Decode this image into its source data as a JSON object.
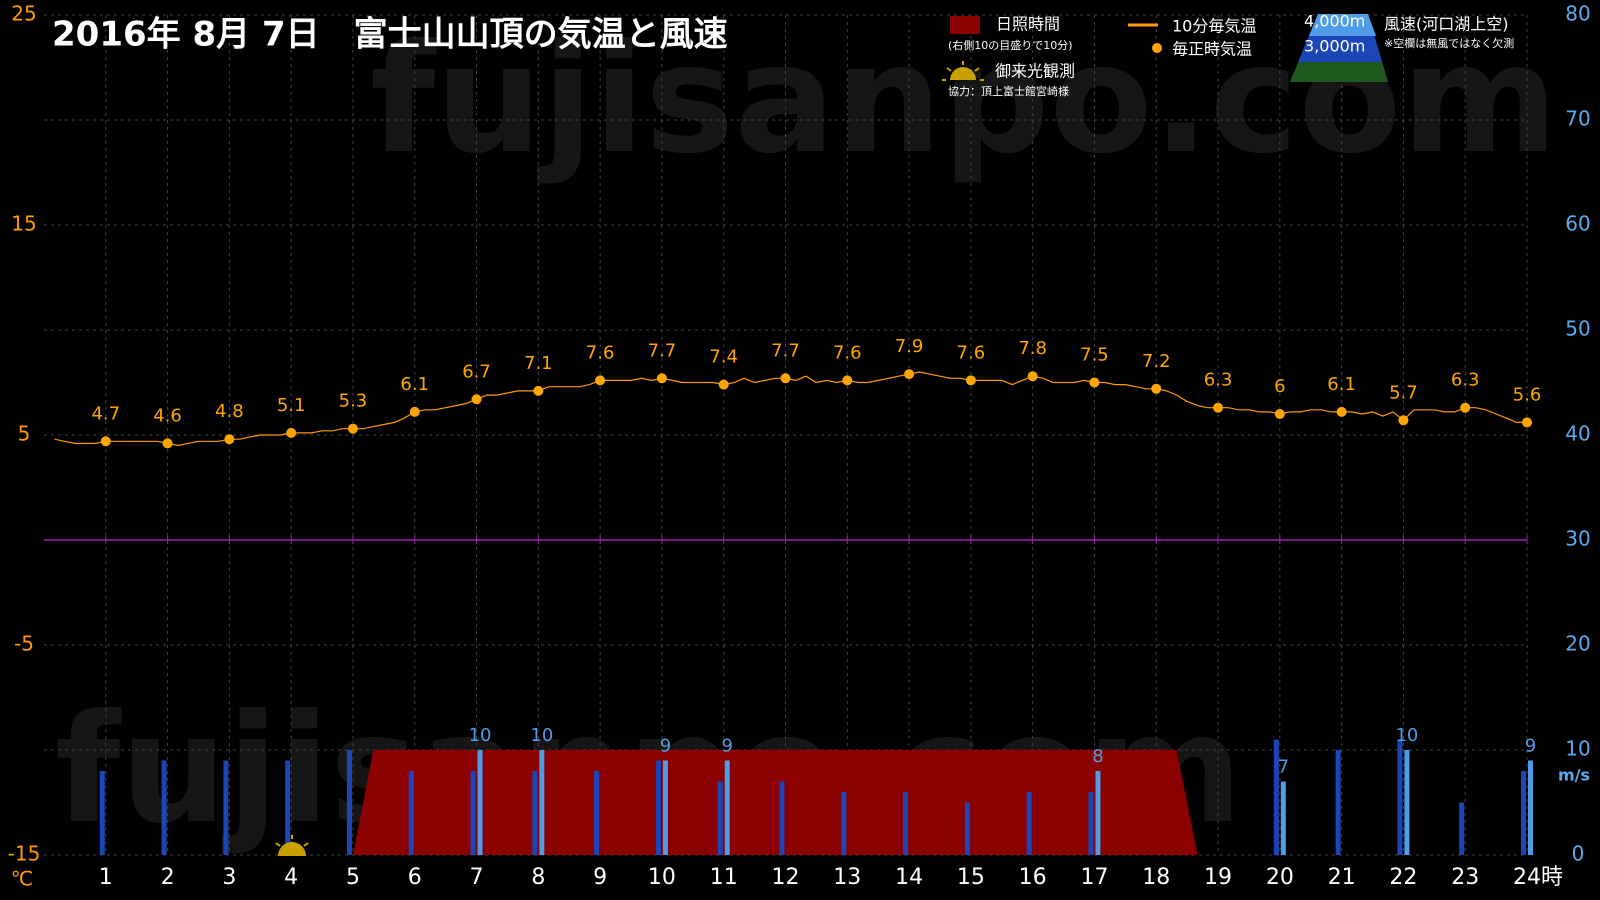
{
  "chart_data": {
    "type": "combo",
    "title": "2016年  8月  7日　富士山山頂の気温と風速",
    "watermark": "fujisanpo.com",
    "xlim": [
      0,
      24
    ],
    "xticks": [
      1,
      2,
      3,
      4,
      5,
      6,
      7,
      8,
      9,
      10,
      11,
      12,
      13,
      14,
      15,
      16,
      17,
      18,
      19,
      20,
      21,
      22,
      23,
      24
    ],
    "x_unit": "時",
    "ylim": [
      -15,
      25
    ],
    "yticks": [
      -15,
      -5,
      5,
      15,
      25
    ],
    "yminor": [
      -10,
      0,
      10,
      20
    ],
    "y_unit": "℃",
    "y2lim": [
      0,
      80
    ],
    "y2ticks": [
      0,
      10,
      20,
      30,
      40,
      50,
      60,
      70,
      80
    ],
    "y2_unit": "m/s",
    "grid": true,
    "reference_line": {
      "value": 0,
      "color": "#a020b0"
    },
    "legend_notes": {
      "sunshine": "(右側10の目盛りで10分)",
      "wind": "風速(河口湖上空)",
      "missing": "※空欄は無風ではなく欠測",
      "sunrise": "御来光観測",
      "credit": "協力：頂上富士館宮崎様"
    },
    "series": [
      {
        "name": "日照時間",
        "type": "area",
        "axis": "y2",
        "color": "#8b0000",
        "x": [
          5,
          5.33,
          18.33,
          18.67
        ],
        "values": [
          0,
          10,
          10,
          0
        ]
      },
      {
        "name": "10分毎気温",
        "type": "line",
        "color": "#ff9900",
        "x": [
          0.17,
          0.33,
          0.5,
          0.67,
          0.83,
          1,
          1.17,
          1.33,
          1.5,
          1.67,
          1.83,
          2,
          2.17,
          2.33,
          2.5,
          2.67,
          2.83,
          3,
          3.17,
          3.33,
          3.5,
          3.67,
          3.83,
          4,
          4.17,
          4.33,
          4.5,
          4.67,
          4.83,
          5,
          5.17,
          5.33,
          5.5,
          5.67,
          5.83,
          6,
          6.17,
          6.33,
          6.5,
          6.67,
          6.83,
          7,
          7.17,
          7.33,
          7.5,
          7.67,
          7.83,
          8,
          8.17,
          8.33,
          8.5,
          8.67,
          8.83,
          9,
          9.17,
          9.33,
          9.5,
          9.67,
          9.83,
          10,
          10.17,
          10.33,
          10.5,
          10.67,
          10.83,
          11,
          11.17,
          11.33,
          11.5,
          11.67,
          11.83,
          12,
          12.17,
          12.33,
          12.5,
          12.67,
          12.83,
          13,
          13.17,
          13.33,
          13.5,
          13.67,
          13.83,
          14,
          14.17,
          14.33,
          14.5,
          14.67,
          14.83,
          15,
          15.17,
          15.33,
          15.5,
          15.67,
          15.83,
          16,
          16.17,
          16.33,
          16.5,
          16.67,
          16.83,
          17,
          17.17,
          17.33,
          17.5,
          17.67,
          17.83,
          18,
          18.17,
          18.33,
          18.5,
          18.67,
          18.83,
          19,
          19.17,
          19.33,
          19.5,
          19.67,
          19.83,
          20,
          20.17,
          20.33,
          20.5,
          20.67,
          20.83,
          21,
          21.17,
          21.33,
          21.5,
          21.67,
          21.83,
          22,
          22.17,
          22.33,
          22.5,
          22.67,
          22.83,
          23,
          23.17,
          23.33,
          23.5,
          23.67,
          23.83,
          24
        ],
        "values": [
          4.8,
          4.7,
          4.6,
          4.6,
          4.6,
          4.7,
          4.7,
          4.7,
          4.7,
          4.7,
          4.7,
          4.6,
          4.5,
          4.6,
          4.7,
          4.7,
          4.7,
          4.8,
          4.8,
          4.9,
          5.0,
          5.0,
          5.0,
          5.1,
          5.1,
          5.1,
          5.2,
          5.2,
          5.3,
          5.3,
          5.3,
          5.4,
          5.5,
          5.6,
          5.8,
          6.1,
          6.2,
          6.2,
          6.3,
          6.4,
          6.5,
          6.7,
          6.9,
          6.9,
          7.0,
          7.1,
          7.1,
          7.1,
          7.3,
          7.3,
          7.3,
          7.3,
          7.4,
          7.6,
          7.6,
          7.6,
          7.6,
          7.7,
          7.6,
          7.7,
          7.6,
          7.5,
          7.5,
          7.5,
          7.5,
          7.4,
          7.5,
          7.7,
          7.5,
          7.6,
          7.7,
          7.7,
          7.6,
          7.8,
          7.5,
          7.6,
          7.5,
          7.6,
          7.5,
          7.5,
          7.6,
          7.7,
          7.8,
          7.9,
          8.0,
          7.9,
          7.8,
          7.7,
          7.7,
          7.6,
          7.6,
          7.6,
          7.6,
          7.4,
          7.6,
          7.8,
          7.7,
          7.5,
          7.5,
          7.5,
          7.6,
          7.5,
          7.5,
          7.4,
          7.4,
          7.3,
          7.2,
          7.2,
          7.1,
          6.9,
          6.6,
          6.4,
          6.3,
          6.3,
          6.3,
          6.2,
          6.2,
          6.1,
          6.1,
          6.0,
          6.1,
          6.1,
          6.2,
          6.2,
          6.1,
          6.1,
          6.1,
          6.0,
          6.1,
          5.9,
          6.1,
          5.7,
          6.2,
          6.2,
          6.2,
          6.1,
          6.1,
          6.3,
          6.3,
          6.2,
          6.0,
          5.8,
          5.6,
          5.6
        ]
      },
      {
        "name": "毎正時気温",
        "type": "scatter",
        "color": "#ffa500",
        "x": [
          1,
          2,
          3,
          4,
          5,
          6,
          7,
          8,
          9,
          10,
          11,
          12,
          13,
          14,
          15,
          16,
          17,
          18,
          19,
          20,
          21,
          22,
          23,
          24
        ],
        "values": [
          4.7,
          4.6,
          4.8,
          5.1,
          5.3,
          6.1,
          6.7,
          7.1,
          7.6,
          7.7,
          7.4,
          7.7,
          7.6,
          7.9,
          7.6,
          7.8,
          7.5,
          7.2,
          6.3,
          6,
          6.1,
          5.7,
          6.3,
          5.6
        ]
      },
      {
        "name": "4,000m",
        "type": "bar",
        "axis": "y2",
        "color": "#1c46b8",
        "offset": -1,
        "x": [
          1,
          2,
          3,
          4,
          5,
          6,
          7,
          8,
          9,
          10,
          11,
          12,
          13,
          14,
          15,
          16,
          17,
          18,
          19,
          20,
          21,
          22,
          23,
          24
        ],
        "values": [
          8,
          9,
          9,
          9,
          10,
          8,
          8,
          8,
          8,
          9,
          7,
          7,
          6,
          6,
          5,
          6,
          6,
          null,
          null,
          11,
          10,
          11,
          5,
          8
        ]
      },
      {
        "name": "3,000m",
        "type": "bar",
        "axis": "y2",
        "color": "#4f9de8",
        "offset": 1,
        "labels": true,
        "x": [
          1,
          2,
          3,
          4,
          5,
          6,
          7,
          8,
          9,
          10,
          11,
          12,
          13,
          14,
          15,
          16,
          17,
          18,
          19,
          20,
          21,
          22,
          23,
          24
        ],
        "values": [
          null,
          null,
          null,
          null,
          null,
          null,
          10,
          10,
          null,
          9,
          9,
          null,
          null,
          null,
          null,
          null,
          8,
          null,
          null,
          7,
          null,
          10,
          null,
          9
        ]
      }
    ]
  }
}
